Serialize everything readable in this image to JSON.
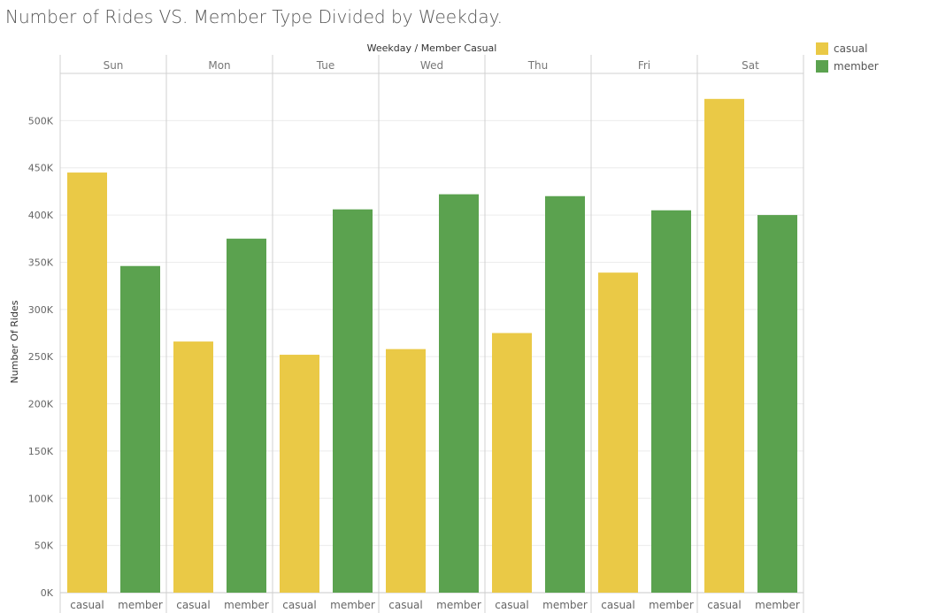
{
  "title": "Number of Rides VS. Member Type Divided by Weekday.",
  "colors": {
    "casual": "#eac946",
    "member": "#5ba24f"
  },
  "legend": [
    {
      "label": "casual",
      "color": "#eac946"
    },
    {
      "label": "member",
      "color": "#5ba24f"
    }
  ],
  "chart_data": {
    "type": "bar",
    "title": "Number of Rides VS. Member Type Divided by Weekday.",
    "header_label": "Weekday  /  Member Casual",
    "xlabel": "",
    "ylabel": "Number Of Rides",
    "ylim": [
      0,
      550000
    ],
    "y_ticks": [
      0,
      50000,
      100000,
      150000,
      200000,
      250000,
      300000,
      350000,
      400000,
      450000,
      500000
    ],
    "y_tick_labels": [
      "0K",
      "50K",
      "100K",
      "150K",
      "200K",
      "250K",
      "300K",
      "350K",
      "400K",
      "450K",
      "500K"
    ],
    "grid": true,
    "legend_position": "right",
    "categories": [
      "Sun",
      "Mon",
      "Tue",
      "Wed",
      "Thu",
      "Fri",
      "Sat"
    ],
    "sub_categories": [
      "casual",
      "member"
    ],
    "series": [
      {
        "name": "casual",
        "values": [
          445000,
          266000,
          252000,
          258000,
          275000,
          339000,
          523000
        ]
      },
      {
        "name": "member",
        "values": [
          346000,
          375000,
          406000,
          422000,
          420000,
          405000,
          400000
        ]
      }
    ]
  }
}
